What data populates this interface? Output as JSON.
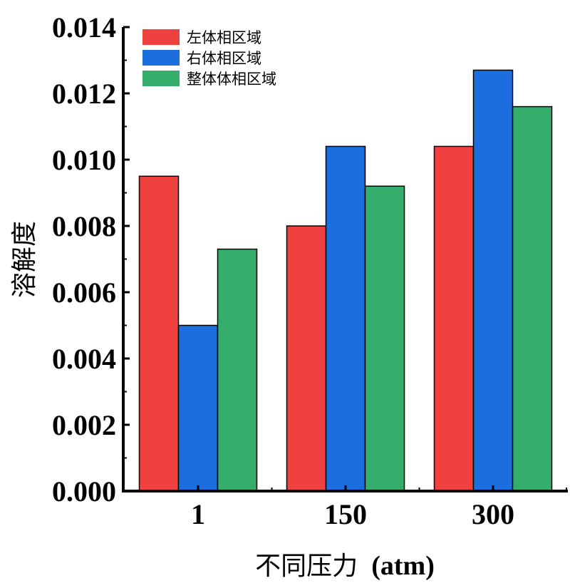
{
  "chart_data": {
    "type": "bar",
    "categories": [
      "1",
      "150",
      "300"
    ],
    "series": [
      {
        "name": "左体相区域",
        "color": "#f04141",
        "values": [
          0.0095,
          0.008,
          0.0104
        ]
      },
      {
        "name": "右体相区域",
        "color": "#1c6ede",
        "values": [
          0.005,
          0.0104,
          0.0127
        ]
      },
      {
        "name": "整体体相区域",
        "color": "#35ad6b",
        "values": [
          0.0073,
          0.0092,
          0.0116
        ]
      }
    ],
    "xlabel_main": "不同压力",
    "xlabel_unit": "(atm)",
    "ylabel": "溶解度",
    "ylim": [
      0,
      0.014
    ],
    "yticks": [
      "0.000",
      "0.002",
      "0.004",
      "0.006",
      "0.008",
      "0.010",
      "0.012",
      "0.014"
    ],
    "legend_position": "top-left",
    "grid": false
  }
}
